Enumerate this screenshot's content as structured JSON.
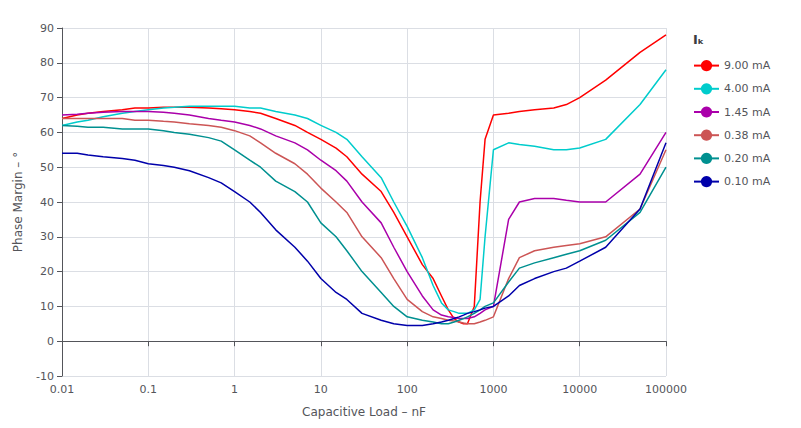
{
  "chart_data": {
    "type": "line",
    "xlabel": "Capacitive Load – nF",
    "ylabel": "Phase Margin – °",
    "legend_title": "Iₖ",
    "log": "x",
    "grid": true,
    "legend": "right",
    "xlim": [
      0.01,
      100000
    ],
    "xticks": [
      0.01,
      0.1,
      1,
      10,
      100,
      1000,
      10000,
      100000
    ],
    "ylim": [
      -10,
      90
    ],
    "yticks": [
      -10,
      0,
      10,
      20,
      30,
      40,
      50,
      60,
      70,
      80,
      90
    ],
    "x": [
      0.01,
      0.015,
      0.02,
      0.03,
      0.05,
      0.07,
      0.1,
      0.15,
      0.2,
      0.3,
      0.5,
      0.7,
      1,
      1.5,
      2,
      3,
      5,
      7,
      10,
      15,
      20,
      30,
      50,
      70,
      100,
      150,
      200,
      250,
      300,
      350,
      400,
      450,
      500,
      600,
      700,
      800,
      1000,
      1500,
      2000,
      3000,
      5000,
      7000,
      10000,
      20000,
      50000,
      100000
    ],
    "series": [
      {
        "name": "9.00 mA",
        "color": "#FF0000",
        "values": [
          64,
          65,
          65.5,
          66,
          66.5,
          67,
          67,
          67.2,
          67.2,
          67.2,
          67,
          66.8,
          66.5,
          66,
          65.5,
          64,
          62,
          60,
          58,
          55.5,
          53,
          48,
          43,
          37,
          30,
          22,
          18,
          13,
          9,
          6.5,
          5.5,
          5,
          5,
          10,
          40,
          58,
          65,
          65.5,
          66,
          66.5,
          67,
          68,
          70,
          75,
          83,
          88
        ]
      },
      {
        "name": "4.00 mA",
        "color": "#00CCCC",
        "values": [
          62,
          63,
          63.5,
          64.5,
          65.5,
          66,
          66.5,
          67,
          67.2,
          67.5,
          67.5,
          67.5,
          67.5,
          67,
          67,
          66,
          65,
          64,
          62,
          60,
          58,
          53,
          47,
          40,
          33,
          24,
          16,
          11,
          9,
          8.5,
          8,
          8,
          8,
          9,
          12,
          30,
          55,
          57,
          56.5,
          56,
          55,
          55,
          55.5,
          58,
          68,
          78
        ]
      },
      {
        "name": "1.45 mA",
        "color": "#AA00AA",
        "values": [
          65,
          65.2,
          65.5,
          65.8,
          66,
          66,
          66,
          65.8,
          65.5,
          65,
          64,
          63.5,
          63,
          62,
          61,
          59,
          57,
          55,
          52,
          49,
          46,
          40,
          34,
          27,
          20,
          13,
          9,
          7.5,
          7,
          6.8,
          6.5,
          6.5,
          6.5,
          7,
          8,
          9,
          10,
          35,
          40,
          41,
          41,
          40.5,
          40,
          40,
          48,
          60
        ]
      },
      {
        "name": "0.38 mA",
        "color": "#CC5555",
        "values": [
          64,
          64,
          64,
          64,
          64,
          63.5,
          63.5,
          63.2,
          63,
          62.5,
          62,
          61.5,
          60.5,
          59,
          57,
          54,
          51,
          48,
          44,
          40,
          37,
          30,
          24,
          18,
          12,
          8.5,
          7,
          6.5,
          6,
          5.8,
          5.5,
          5.2,
          5,
          5,
          5.5,
          6,
          7,
          18,
          24,
          26,
          27,
          27.5,
          28,
          30,
          38,
          55
        ]
      },
      {
        "name": "0.20 mA",
        "color": "#009090",
        "values": [
          62,
          61.8,
          61.5,
          61.5,
          61,
          61,
          61,
          60.5,
          60,
          59.5,
          58.5,
          57.5,
          55,
          52,
          50,
          46,
          43,
          40,
          34,
          30,
          26,
          20,
          14,
          10,
          7,
          6,
          5.5,
          5,
          5,
          5.5,
          6,
          6.5,
          7,
          8,
          9,
          10,
          11,
          17,
          21,
          22.5,
          24,
          25,
          26,
          29,
          37,
          50
        ]
      },
      {
        "name": "0.10 mA",
        "color": "#0000AA",
        "values": [
          54,
          54,
          53.5,
          53,
          52.5,
          52,
          51,
          50.5,
          50,
          49,
          47,
          45.5,
          43,
          40,
          37,
          32,
          27,
          23,
          18,
          14,
          12,
          8,
          6,
          5,
          4.5,
          4.5,
          5,
          5.5,
          6,
          6.5,
          7,
          7.5,
          8,
          8.5,
          9,
          9.5,
          10,
          13,
          16,
          18,
          20,
          21,
          23,
          27,
          38,
          57
        ]
      }
    ]
  }
}
